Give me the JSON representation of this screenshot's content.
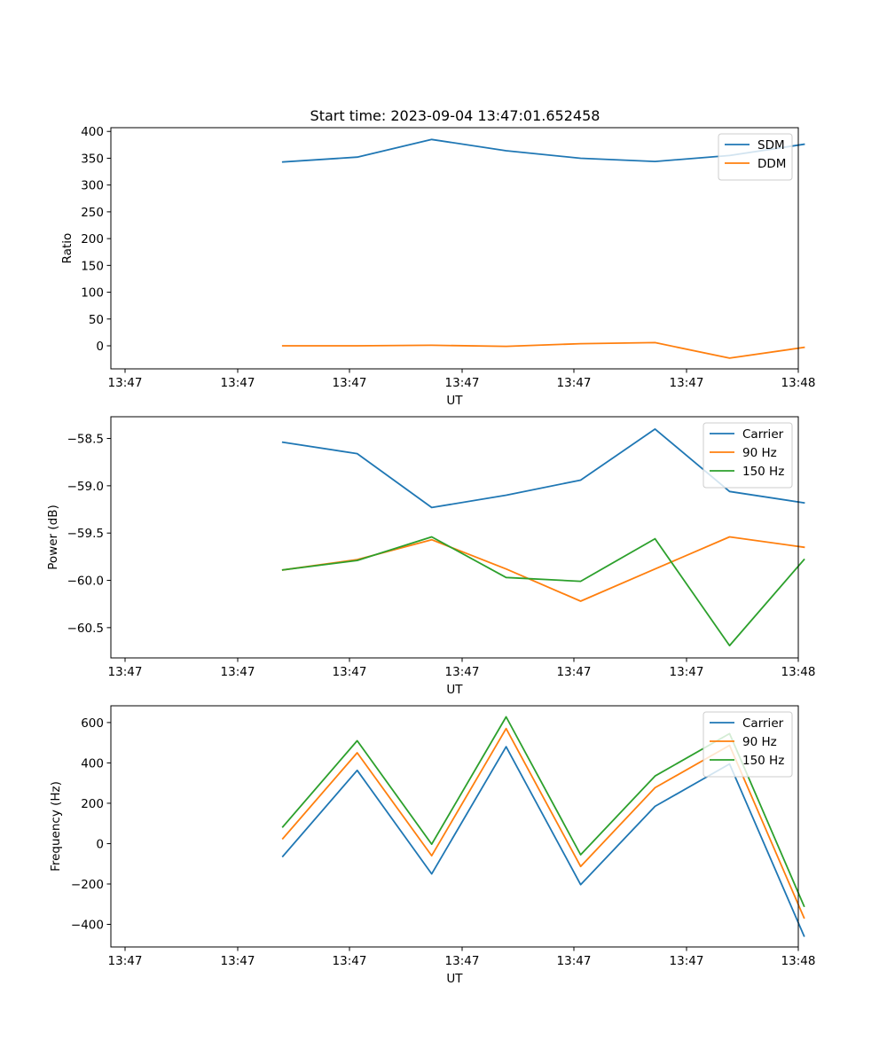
{
  "figure_title": "Start time: 2023-09-04 13:47:01.652458",
  "chart_data": [
    {
      "type": "line",
      "title": "Start time: 2023-09-04 13:47:01.652458",
      "xlabel": "UT",
      "ylabel": "Ratio",
      "x_tick_labels": [
        "13:47",
        "13:47",
        "13:47",
        "13:47",
        "13:47",
        "13:47",
        "13:48"
      ],
      "x": [
        1.5,
        2.15,
        2.8,
        3.45,
        4.1,
        4.75,
        5.4,
        6.05
      ],
      "xlim": [
        0,
        6
      ],
      "ylim": [
        -43,
        407
      ],
      "y_ticks": [
        0,
        50,
        100,
        150,
        200,
        250,
        300,
        350,
        400
      ],
      "series": [
        {
          "name": "SDM",
          "color": "#1f77b4",
          "values": [
            343,
            352,
            385,
            364,
            350,
            344,
            355,
            376
          ]
        },
        {
          "name": "DDM",
          "color": "#ff7f0e",
          "values": [
            0,
            0,
            1,
            -1,
            4,
            6,
            -23,
            -3
          ]
        }
      ],
      "legend": "top-right"
    },
    {
      "type": "line",
      "title": "",
      "xlabel": "UT",
      "ylabel": "Power (dB)",
      "x_tick_labels": [
        "13:47",
        "13:47",
        "13:47",
        "13:47",
        "13:47",
        "13:47",
        "13:48"
      ],
      "x": [
        1.5,
        2.15,
        2.8,
        3.45,
        4.1,
        4.75,
        5.4,
        6.05
      ],
      "xlim": [
        0,
        6
      ],
      "ylim": [
        -60.82,
        -58.27
      ],
      "y_ticks": [
        -60.5,
        -60.0,
        -59.5,
        -59.0,
        -58.5
      ],
      "y_tick_labels": [
        "−60.5",
        "−60.0",
        "−59.5",
        "−59.0",
        "−58.5"
      ],
      "series": [
        {
          "name": "Carrier",
          "color": "#1f77b4",
          "values": [
            -58.54,
            -58.66,
            -59.23,
            -59.1,
            -58.94,
            -58.4,
            -59.06,
            -59.18
          ]
        },
        {
          "name": "90 Hz",
          "color": "#ff7f0e",
          "values": [
            -59.89,
            -59.78,
            -59.57,
            -59.88,
            -60.22,
            -59.88,
            -59.54,
            -59.65
          ]
        },
        {
          "name": "150 Hz",
          "color": "#2ca02c",
          "values": [
            -59.89,
            -59.79,
            -59.54,
            -59.97,
            -60.01,
            -59.56,
            -60.69,
            -59.78
          ]
        }
      ],
      "legend": "top-right"
    },
    {
      "type": "line",
      "title": "",
      "xlabel": "UT",
      "ylabel": "Frequency (Hz)",
      "x_tick_labels": [
        "13:47",
        "13:47",
        "13:47",
        "13:47",
        "13:47",
        "13:47",
        "13:48"
      ],
      "x": [
        1.5,
        2.15,
        2.8,
        3.45,
        4.1,
        4.75,
        5.4,
        6.05
      ],
      "xlim": [
        0,
        6
      ],
      "ylim": [
        -512,
        683
      ],
      "y_ticks": [
        -400,
        -200,
        0,
        200,
        400,
        600
      ],
      "y_tick_labels": [
        "−400",
        "−200",
        "0",
        "200",
        "400",
        "600"
      ],
      "series": [
        {
          "name": "Carrier",
          "color": "#1f77b4",
          "values": [
            -63,
            363,
            -150,
            480,
            -203,
            185,
            395,
            -458
          ]
        },
        {
          "name": "90 Hz",
          "color": "#ff7f0e",
          "values": [
            25,
            450,
            -60,
            570,
            -113,
            277,
            487,
            -368
          ]
        },
        {
          "name": "150 Hz",
          "color": "#2ca02c",
          "values": [
            83,
            510,
            -3,
            628,
            -55,
            335,
            545,
            -310
          ]
        }
      ],
      "legend": "top-right"
    }
  ]
}
